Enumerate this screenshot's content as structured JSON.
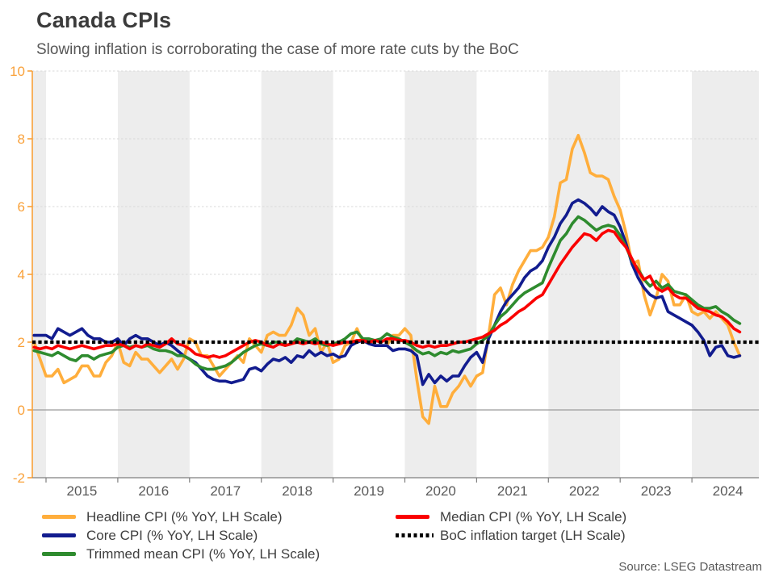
{
  "title": "Canada CPIs",
  "subtitle": "Slowing inflation is corroborating the case of more rate cuts by the BoC",
  "source": "Source: LSEG Datastream",
  "colors": {
    "headline": "#FFAE3C",
    "core": "#121C8F",
    "trimmed": "#2E8B2E",
    "median": "#FA0000",
    "target": "#000000",
    "y_axis": "#F9A13A",
    "x_axis": "#7F7F7F",
    "x_labels": "#595959",
    "zero_line": "#9B9B9B",
    "gridline": "#D9D9D9",
    "band": "#EDEDED"
  },
  "chart_data": {
    "type": "line",
    "title": "Canada CPIs",
    "subtitle": "Slowing inflation is corroborating the case of more rate cuts by the BoC",
    "x_unit": "month",
    "x_start": "2014-11",
    "months_before_first_tick": 2,
    "x_ticks": [
      2015,
      2016,
      2017,
      2018,
      2019,
      2020,
      2021,
      2022,
      2023,
      2024
    ],
    "ylim": [
      -2,
      10
    ],
    "y_ticks": [
      -2,
      0,
      2,
      4,
      6,
      8,
      10
    ],
    "shaded_years": [
      2014,
      2016,
      2018,
      2020,
      2022,
      2024
    ],
    "grid": "dashed horizontal at 2,4,6,8,10; solid at 0",
    "legend_position": "bottom, two columns",
    "series": [
      {
        "name": "Headline CPI (% YoY, LH Scale)",
        "color": "#FFAE3C",
        "values": [
          2.0,
          1.5,
          1.0,
          1.0,
          1.2,
          0.8,
          0.9,
          1.0,
          1.3,
          1.3,
          1.0,
          1.0,
          1.4,
          1.6,
          2.0,
          1.4,
          1.3,
          1.7,
          1.5,
          1.5,
          1.3,
          1.1,
          1.3,
          1.5,
          1.2,
          1.5,
          2.1,
          2.0,
          1.6,
          1.6,
          1.3,
          1.0,
          1.2,
          1.4,
          1.6,
          1.4,
          2.1,
          1.9,
          1.7,
          2.2,
          2.3,
          2.2,
          2.2,
          2.5,
          3.0,
          2.8,
          2.2,
          2.4,
          1.7,
          2.0,
          1.4,
          1.5,
          1.9,
          2.0,
          2.4,
          2.0,
          2.0,
          1.9,
          1.9,
          1.9,
          2.2,
          2.2,
          2.4,
          2.2,
          0.9,
          -0.2,
          -0.4,
          0.7,
          0.1,
          0.1,
          0.5,
          0.7,
          1.0,
          0.7,
          1.0,
          1.1,
          2.2,
          3.4,
          3.6,
          3.1,
          3.7,
          4.1,
          4.4,
          4.7,
          4.7,
          4.8,
          5.1,
          5.7,
          6.7,
          6.8,
          7.7,
          8.1,
          7.6,
          7.0,
          6.9,
          6.9,
          6.8,
          6.3,
          5.9,
          5.2,
          4.3,
          4.4,
          3.4,
          2.8,
          3.3,
          4.0,
          3.8,
          3.1,
          3.1,
          3.4,
          2.9,
          2.8,
          2.9,
          2.7,
          2.9,
          2.7,
          2.5,
          2.0,
          1.6
        ]
      },
      {
        "name": "Core CPI (% YoY, LH Scale)",
        "color": "#121C8F",
        "values": [
          2.2,
          2.2,
          2.2,
          2.1,
          2.4,
          2.3,
          2.2,
          2.3,
          2.4,
          2.2,
          2.1,
          2.1,
          2.0,
          2.0,
          2.1,
          1.9,
          2.1,
          2.2,
          2.1,
          2.1,
          2.0,
          1.9,
          2.0,
          1.9,
          1.75,
          1.6,
          1.5,
          1.4,
          1.2,
          1.0,
          0.9,
          0.85,
          0.85,
          0.8,
          0.85,
          0.9,
          1.2,
          1.25,
          1.15,
          1.35,
          1.5,
          1.45,
          1.55,
          1.4,
          1.6,
          1.55,
          1.75,
          1.6,
          1.7,
          1.6,
          1.65,
          1.55,
          1.6,
          1.9,
          2.0,
          2.05,
          1.95,
          1.9,
          1.9,
          1.9,
          1.75,
          1.8,
          1.8,
          1.75,
          1.6,
          0.75,
          1.05,
          0.8,
          1.0,
          0.85,
          1.0,
          1.0,
          1.3,
          1.55,
          1.7,
          1.4,
          2.1,
          2.5,
          2.9,
          3.2,
          3.4,
          3.6,
          3.9,
          4.1,
          4.2,
          4.4,
          4.8,
          5.1,
          5.5,
          5.75,
          6.1,
          6.2,
          6.1,
          5.95,
          5.75,
          6.0,
          5.85,
          5.75,
          5.4,
          4.9,
          4.3,
          3.9,
          3.6,
          3.4,
          3.3,
          3.35,
          2.9,
          2.8,
          2.7,
          2.6,
          2.5,
          2.3,
          2.05,
          1.6,
          1.85,
          1.9,
          1.6,
          1.55,
          1.6
        ]
      },
      {
        "name": "Trimmed mean CPI (% YoY, LH Scale)",
        "color": "#2E8B2E",
        "values": [
          1.75,
          1.7,
          1.65,
          1.6,
          1.7,
          1.6,
          1.5,
          1.45,
          1.6,
          1.6,
          1.5,
          1.6,
          1.65,
          1.7,
          1.85,
          1.9,
          1.85,
          1.9,
          1.85,
          1.9,
          1.8,
          1.75,
          1.75,
          1.7,
          1.6,
          1.6,
          1.5,
          1.35,
          1.25,
          1.2,
          1.2,
          1.25,
          1.3,
          1.4,
          1.55,
          1.7,
          1.8,
          1.9,
          1.95,
          1.9,
          2.0,
          2.0,
          1.9,
          1.95,
          2.1,
          2.05,
          2.0,
          2.1,
          1.95,
          1.9,
          1.95,
          2.0,
          2.1,
          2.25,
          2.3,
          2.1,
          2.1,
          2.05,
          2.1,
          2.25,
          2.15,
          2.1,
          2.0,
          1.9,
          1.75,
          1.65,
          1.7,
          1.6,
          1.7,
          1.65,
          1.75,
          1.7,
          1.75,
          1.8,
          1.95,
          2.05,
          2.2,
          2.5,
          2.75,
          2.9,
          3.1,
          3.3,
          3.45,
          3.55,
          3.65,
          3.75,
          4.2,
          4.6,
          5.0,
          5.2,
          5.5,
          5.7,
          5.6,
          5.45,
          5.3,
          5.4,
          5.45,
          5.4,
          5.15,
          4.8,
          4.4,
          4.15,
          3.85,
          3.65,
          3.8,
          3.6,
          3.7,
          3.5,
          3.45,
          3.4,
          3.25,
          3.1,
          3.0,
          3.0,
          3.05,
          2.9,
          2.8,
          2.65,
          2.55
        ]
      },
      {
        "name": "Median CPI (% YoY, LH Scale)",
        "color": "#FA0000",
        "values": [
          1.85,
          1.8,
          1.85,
          1.8,
          1.9,
          1.85,
          1.8,
          1.85,
          1.9,
          1.85,
          1.8,
          1.85,
          1.9,
          1.9,
          1.95,
          1.9,
          1.8,
          1.9,
          1.85,
          1.95,
          1.9,
          1.85,
          1.95,
          2.1,
          1.95,
          1.9,
          1.8,
          1.65,
          1.6,
          1.55,
          1.6,
          1.55,
          1.6,
          1.7,
          1.8,
          1.9,
          2.0,
          2.05,
          2.0,
          1.9,
          1.85,
          1.95,
          1.9,
          1.95,
          2.0,
          1.95,
          2.0,
          1.95,
          2.0,
          1.95,
          1.9,
          1.95,
          2.0,
          2.0,
          2.05,
          2.05,
          2.0,
          2.05,
          2.0,
          2.1,
          2.1,
          2.05,
          2.05,
          2.0,
          1.9,
          1.85,
          1.9,
          1.85,
          1.9,
          1.9,
          1.95,
          2.0,
          2.0,
          2.05,
          2.1,
          2.15,
          2.25,
          2.35,
          2.5,
          2.6,
          2.75,
          2.9,
          3.0,
          3.15,
          3.3,
          3.4,
          3.7,
          4.0,
          4.3,
          4.55,
          4.8,
          5.0,
          5.2,
          5.15,
          5.0,
          5.2,
          5.3,
          5.25,
          5.0,
          4.8,
          4.45,
          4.1,
          3.85,
          3.95,
          3.6,
          3.5,
          3.6,
          3.4,
          3.3,
          3.3,
          3.15,
          3.0,
          2.95,
          2.9,
          2.8,
          2.75,
          2.6,
          2.4,
          2.3
        ]
      },
      {
        "name": "BoC inflation target (LH Scale)",
        "color": "#000000",
        "style": "dotted",
        "constant": 2
      }
    ]
  }
}
